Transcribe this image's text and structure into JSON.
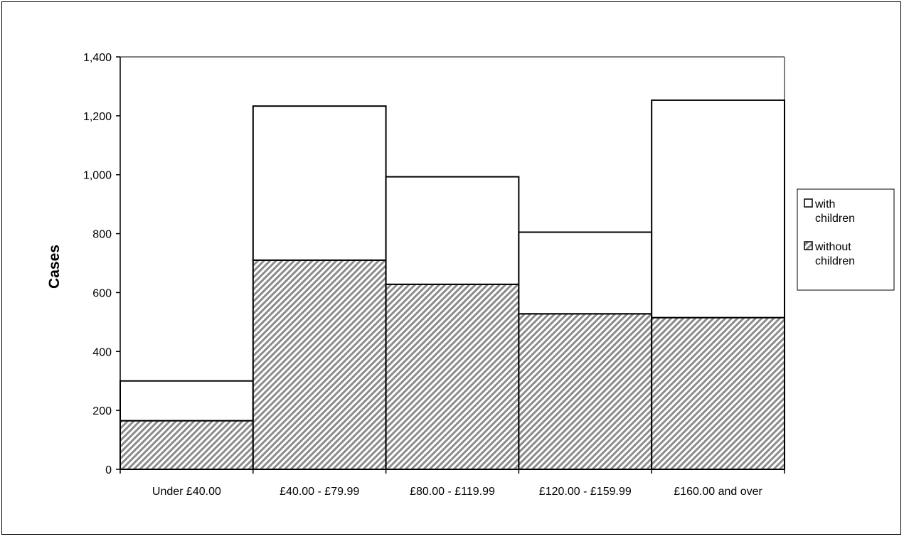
{
  "chart_data": {
    "type": "bar",
    "stacked": true,
    "title": "",
    "xlabel": "",
    "ylabel": "Cases",
    "ylim": [
      0,
      1400
    ],
    "yticks": [
      0,
      200,
      400,
      600,
      800,
      1000,
      1200,
      1400
    ],
    "ytick_labels": [
      "0",
      "200",
      "400",
      "600",
      "800",
      "1,000",
      "1,200",
      "1,400"
    ],
    "categories": [
      "Under £40.00",
      "£40.00 - £79.99",
      "£80.00 - £119.99",
      "£120.00 - £159.99",
      "£160.00 and over"
    ],
    "series": [
      {
        "name": "without children",
        "values": [
          165,
          710,
          628,
          528,
          515
        ],
        "fill": "hatched-gray"
      },
      {
        "name": "with children",
        "values": [
          135,
          523,
          365,
          277,
          738
        ],
        "fill": "white"
      }
    ],
    "legend": {
      "position": "right",
      "items": [
        {
          "label_line1": "with",
          "label_line2": "children",
          "series": "with children"
        },
        {
          "label_line1": "without",
          "label_line2": "children",
          "series": "without children"
        }
      ]
    },
    "grid": false,
    "colors": {
      "hatch": "#808080",
      "bar_fill": "#ffffff",
      "stroke": "#000000"
    }
  }
}
